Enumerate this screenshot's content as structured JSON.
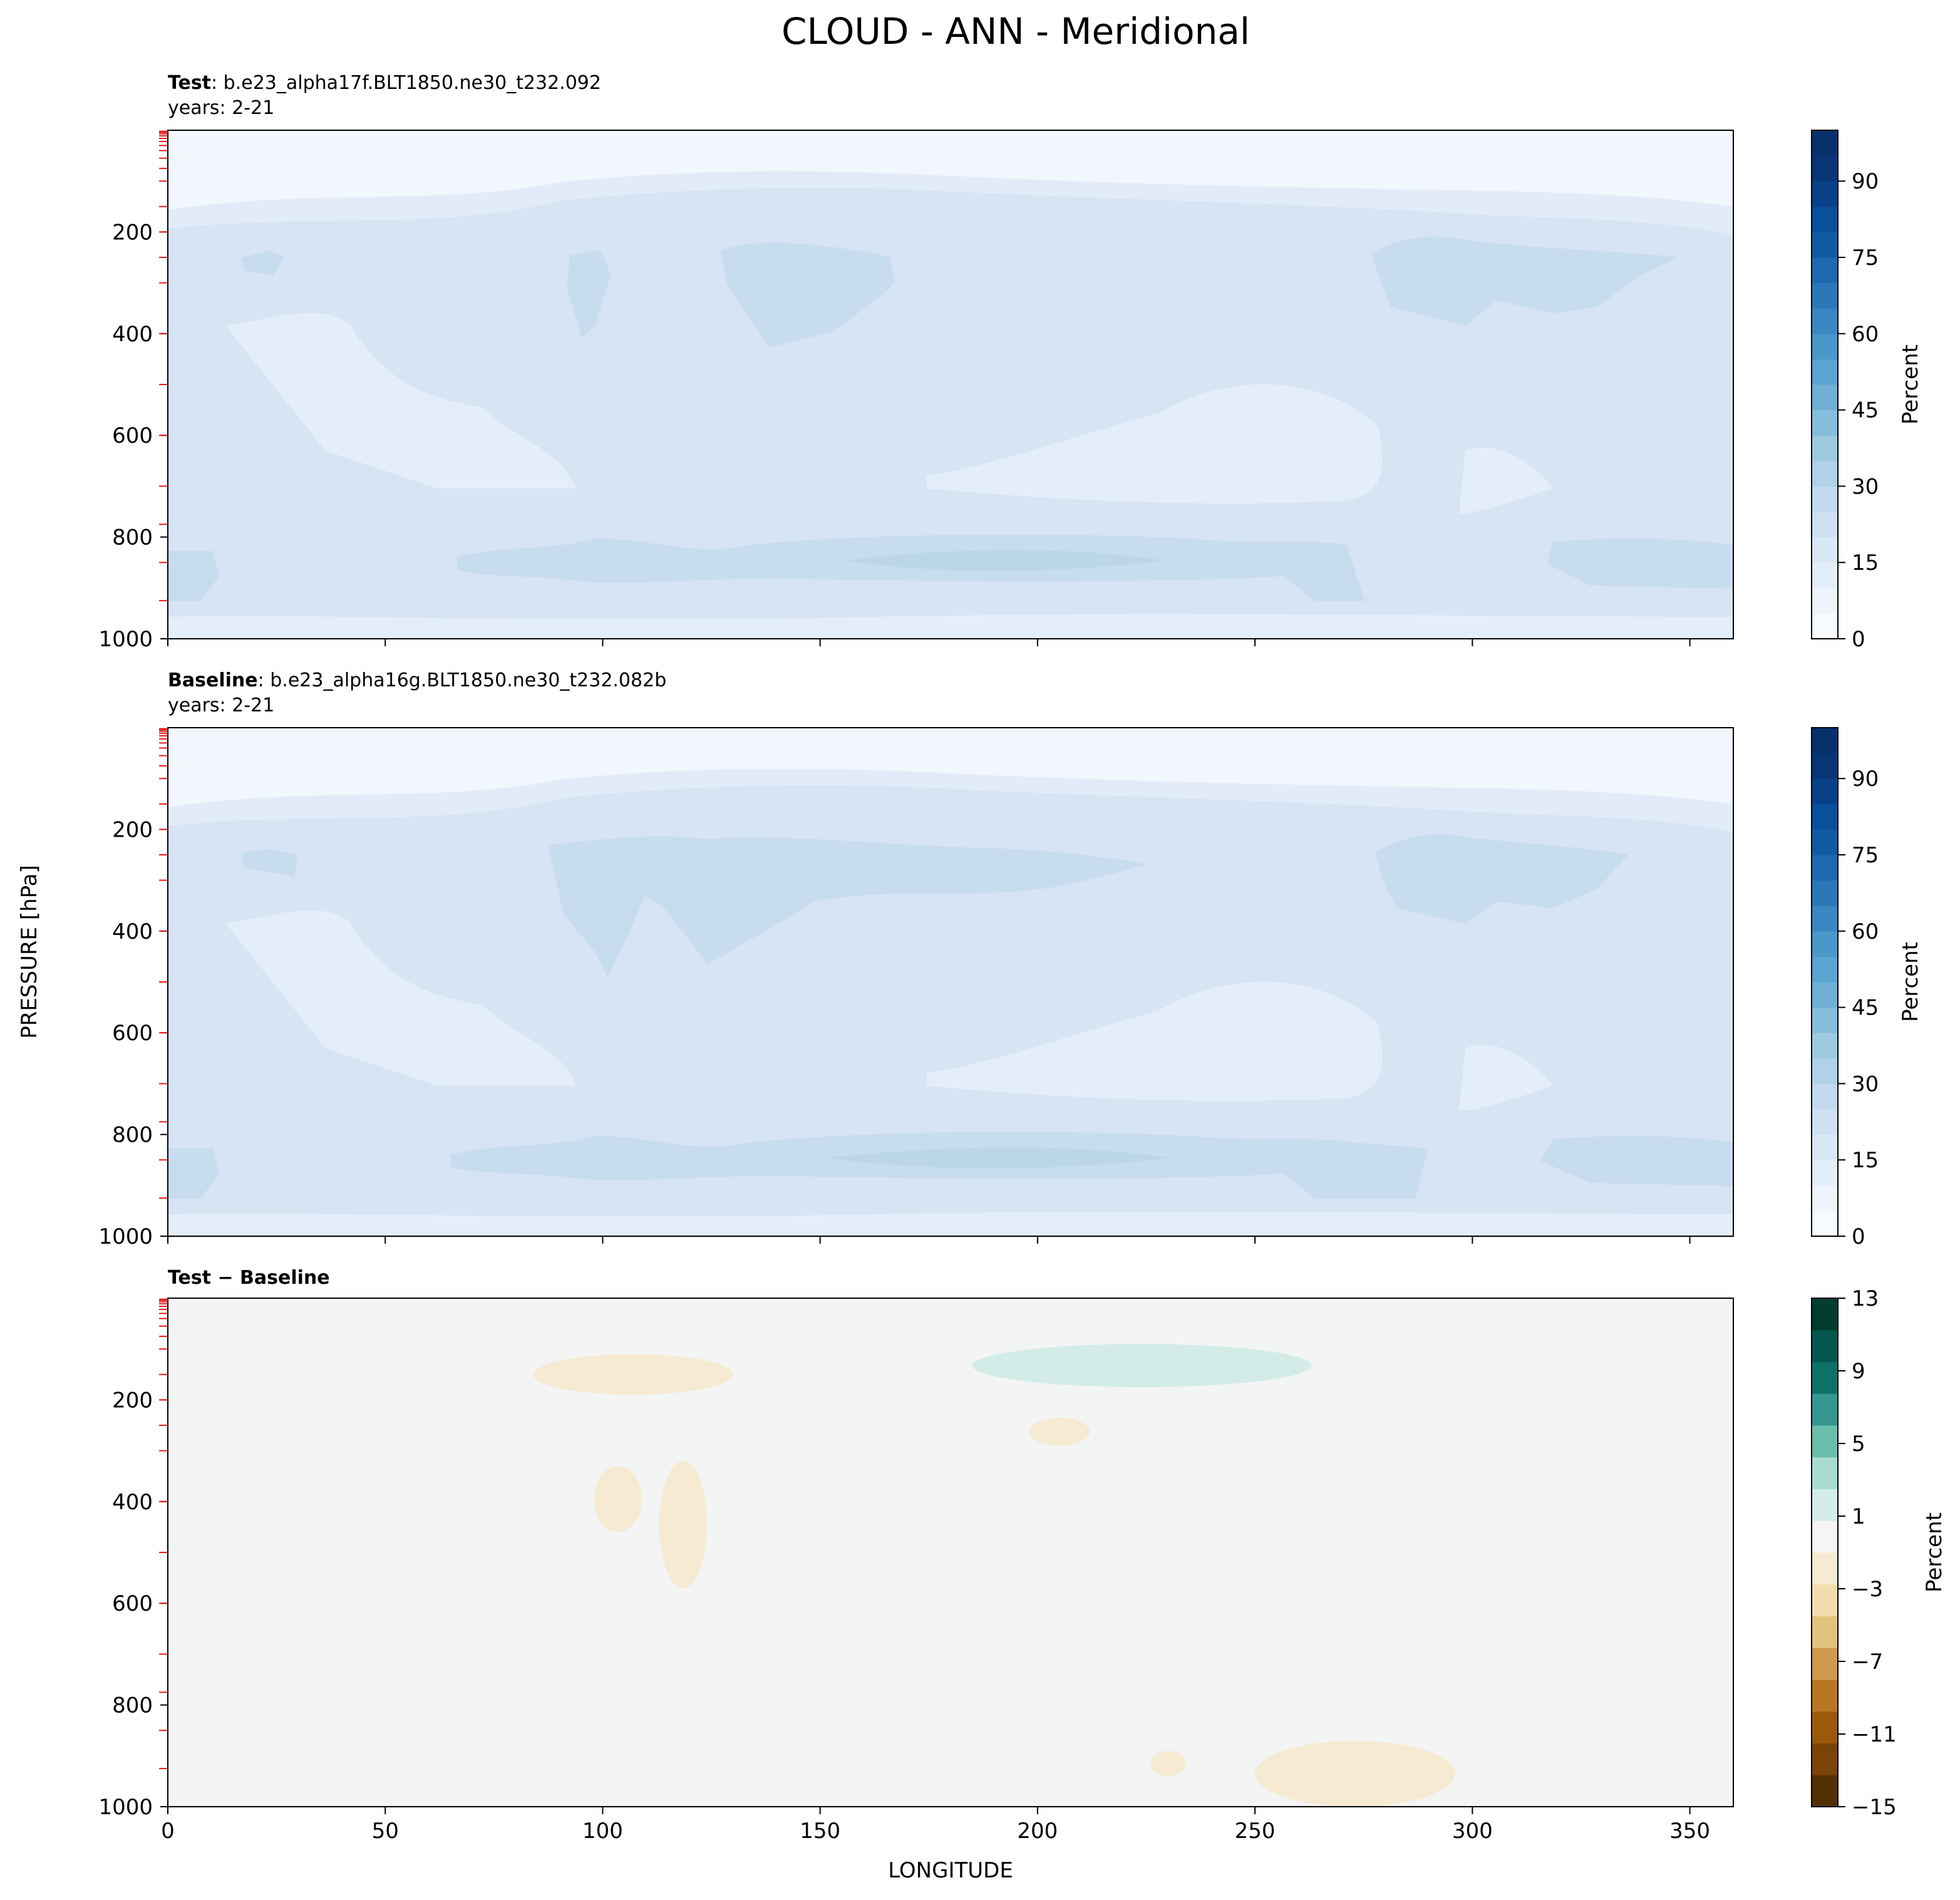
{
  "figure": {
    "title": "CLOUD - ANN - Meridional",
    "ylabel": "PRESSURE [hPa]",
    "xlabel": "LONGITUDE"
  },
  "panels": [
    {
      "id": "test",
      "label_bold": "Test",
      "label_rest": ": b.e23_alpha17f.BLT1850.ne30_t232.092",
      "years": "years: 2-21",
      "colorbar_label": "Percent",
      "colorbar_ticks": [
        "0",
        "15",
        "30",
        "45",
        "60",
        "75",
        "90"
      ]
    },
    {
      "id": "baseline",
      "label_bold": "Baseline",
      "label_rest": ": b.e23_alpha16g.BLT1850.ne30_t232.082b",
      "years": "years: 2-21",
      "colorbar_label": "Percent",
      "colorbar_ticks": [
        "0",
        "15",
        "30",
        "45",
        "60",
        "75",
        "90"
      ]
    },
    {
      "id": "diff",
      "label_bold": "Test − Baseline",
      "label_rest": "",
      "years": "",
      "colorbar_label": "Percent",
      "colorbar_ticks": [
        "−15",
        "−11",
        "−7",
        "−3",
        "1",
        "5",
        "9",
        "13"
      ]
    }
  ],
  "chart_data": [
    {
      "type": "heatmap",
      "panel": "test",
      "xlabel": "",
      "ylabel": "PRESSURE [hPa]",
      "xlim": [
        0,
        360
      ],
      "ylim": [
        1000,
        0
      ],
      "x_ticks": [
        0,
        50,
        100,
        150,
        200,
        250,
        300,
        350
      ],
      "y_ticks": [
        200,
        400,
        600,
        800,
        1000
      ],
      "y_tick_labels": [
        "200",
        "400",
        "600",
        "800",
        "1000"
      ],
      "colorbar_range": [
        0,
        100
      ],
      "colorbar_label": "Percent",
      "colormap": "Blues",
      "approx_regions": [
        {
          "pressure_range": [
            0,
            150
          ],
          "value": 2
        },
        {
          "pressure_range": [
            150,
            230
          ],
          "value": 8
        },
        {
          "pressure_range": [
            230,
            700
          ],
          "value": 15
        },
        {
          "pressure_range": [
            750,
            950
          ],
          "value": 20
        },
        {
          "pressure_range": [
            950,
            1000
          ],
          "value": 8
        }
      ]
    },
    {
      "type": "heatmap",
      "panel": "baseline",
      "xlabel": "",
      "ylabel": "PRESSURE [hPa]",
      "xlim": [
        0,
        360
      ],
      "ylim": [
        1000,
        0
      ],
      "x_ticks": [
        0,
        50,
        100,
        150,
        200,
        250,
        300,
        350
      ],
      "y_ticks": [
        200,
        400,
        600,
        800,
        1000
      ],
      "y_tick_labels": [
        "200",
        "400",
        "600",
        "800",
        "1000"
      ],
      "colorbar_range": [
        0,
        100
      ],
      "colorbar_label": "Percent",
      "colormap": "Blues",
      "approx_regions": [
        {
          "pressure_range": [
            0,
            150
          ],
          "value": 2
        },
        {
          "pressure_range": [
            150,
            230
          ],
          "value": 8
        },
        {
          "pressure_range": [
            230,
            700
          ],
          "value": 15
        },
        {
          "pressure_range": [
            750,
            950
          ],
          "value": 20
        },
        {
          "pressure_range": [
            950,
            1000
          ],
          "value": 8
        }
      ]
    },
    {
      "type": "heatmap",
      "panel": "diff",
      "xlabel": "LONGITUDE",
      "ylabel": "PRESSURE [hPa]",
      "xlim": [
        0,
        360
      ],
      "ylim": [
        1000,
        0
      ],
      "x_ticks": [
        0,
        50,
        100,
        150,
        200,
        250,
        300,
        350
      ],
      "x_tick_labels": [
        "0",
        "50",
        "100",
        "150",
        "200",
        "250",
        "300",
        "350"
      ],
      "y_ticks": [
        200,
        400,
        600,
        800,
        1000
      ],
      "y_tick_labels": [
        "200",
        "400",
        "600",
        "800",
        "1000"
      ],
      "colorbar_range": [
        -15,
        13
      ],
      "colorbar_label": "Percent",
      "colormap": "BrBG",
      "features": [
        {
          "sign": "negative",
          "value": -2,
          "lon": [
            84,
            130
          ],
          "pressure": [
            110,
            190
          ]
        },
        {
          "sign": "positive",
          "value": 2,
          "lon": [
            185,
            263
          ],
          "pressure": [
            90,
            175
          ]
        },
        {
          "sign": "negative",
          "value": -2,
          "lon": [
            198,
            212
          ],
          "pressure": [
            235,
            290
          ]
        },
        {
          "sign": "negative",
          "value": -2,
          "lon": [
            98,
            109
          ],
          "pressure": [
            330,
            460
          ]
        },
        {
          "sign": "negative",
          "value": -2,
          "lon": [
            113,
            124
          ],
          "pressure": [
            320,
            570
          ]
        },
        {
          "sign": "negative",
          "value": -2,
          "lon": [
            226,
            234
          ],
          "pressure": [
            890,
            940
          ]
        },
        {
          "sign": "negative",
          "value": -2,
          "lon": [
            250,
            296
          ],
          "pressure": [
            870,
            1000
          ]
        }
      ]
    }
  ],
  "colors": {
    "blues_light": "#f2f7fd",
    "blues_mid": "#d6e4f3",
    "blues_dark": "#c8dcef",
    "diff_zero": "#f3f5f4",
    "diff_neg": "#f6ead2",
    "diff_pos": "#d3ece7",
    "tick_red": "#e41a1c"
  }
}
